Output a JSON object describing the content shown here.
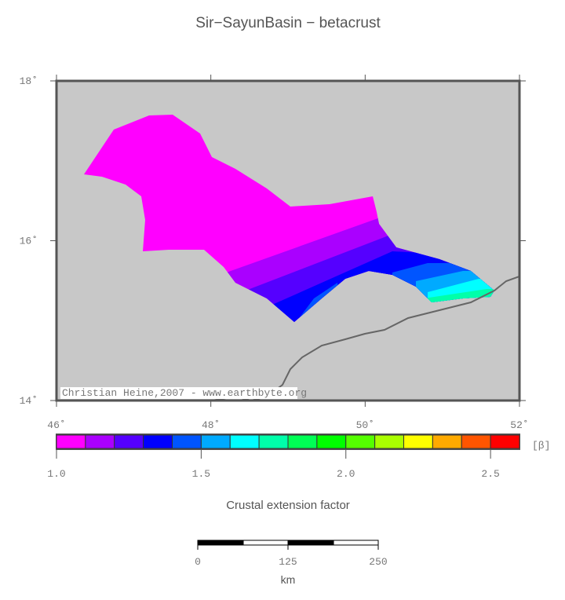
{
  "header": {
    "title": "Sir−SayunBasin − betacrust"
  },
  "map": {
    "lon_range": [
      46,
      52
    ],
    "lat_range": [
      14,
      18
    ],
    "lon_ticks": [
      {
        "value": 46,
        "label": "46˚"
      },
      {
        "value": 48,
        "label": "48˚"
      },
      {
        "value": 50,
        "label": "50˚"
      },
      {
        "value": 52,
        "label": "52˚"
      }
    ],
    "lat_ticks": [
      {
        "value": 18,
        "label": "18˚"
      },
      {
        "value": 16,
        "label": "16˚"
      },
      {
        "value": 14,
        "label": "14˚"
      }
    ],
    "credit": "Christian Heine,2007 - www.earthbyte.org"
  },
  "colorbar": {
    "range": [
      1.0,
      2.6
    ],
    "colors": [
      "#ff00ff",
      "#aa00ff",
      "#5500ff",
      "#0000ff",
      "#0055ff",
      "#00aaff",
      "#00ffff",
      "#00ffaa",
      "#00ff55",
      "#00ff00",
      "#55ff00",
      "#aaff00",
      "#ffff00",
      "#ffaa00",
      "#ff5500",
      "#ff0000"
    ],
    "ticks": [
      {
        "value": 1.0,
        "label": "1.0"
      },
      {
        "value": 1.5,
        "label": "1.5"
      },
      {
        "value": 2.0,
        "label": "2.0"
      },
      {
        "value": 2.5,
        "label": "2.5"
      }
    ],
    "unit": "[β]",
    "label": "Crustal extension factor"
  },
  "scale_bar": {
    "labels": [
      "0",
      "125",
      "250"
    ],
    "unit": "km"
  }
}
